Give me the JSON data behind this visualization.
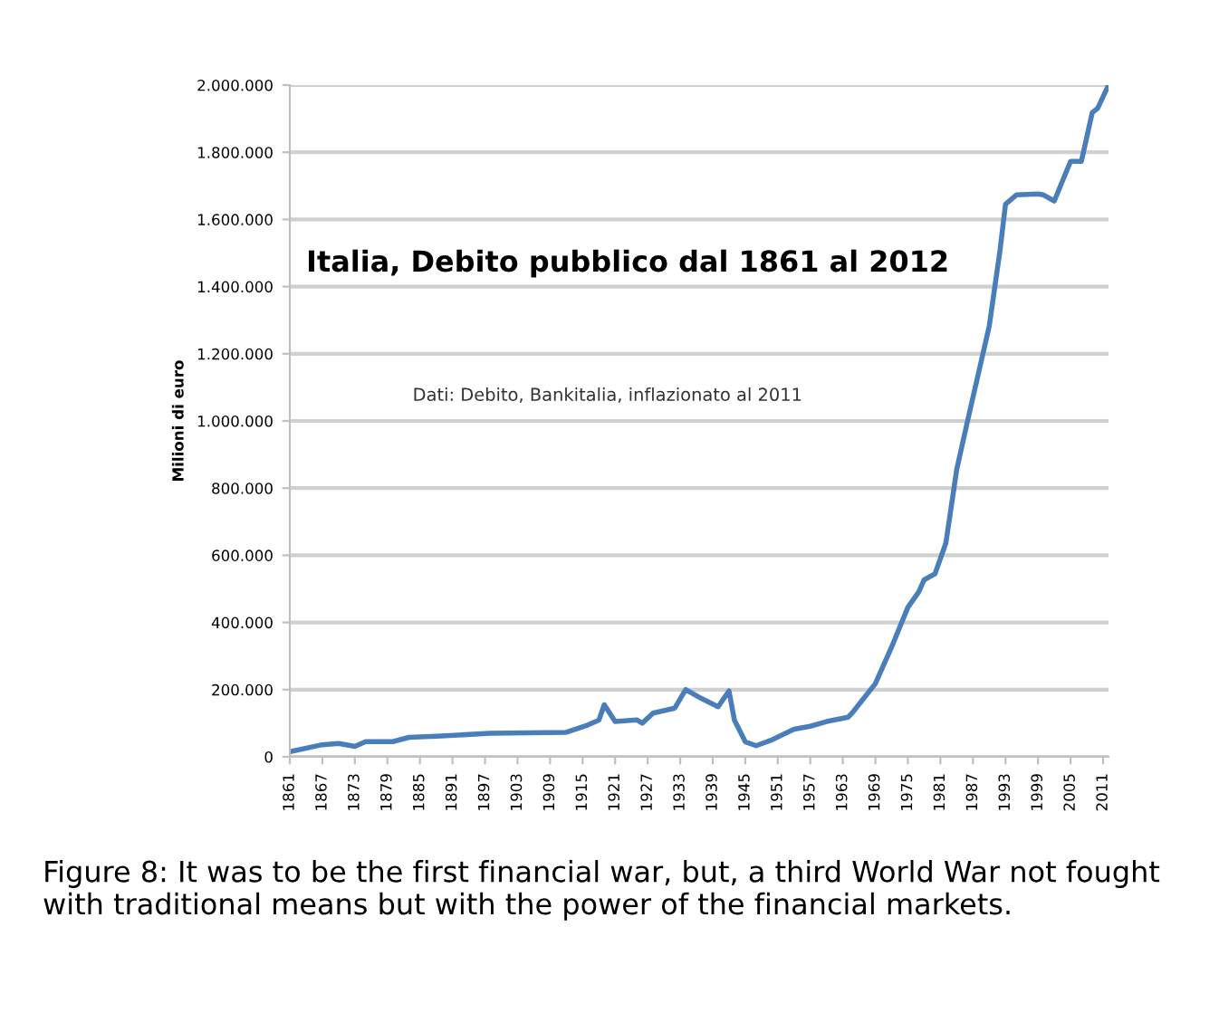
{
  "chart_data": {
    "type": "line",
    "title": "Italia, Debito pubblico dal 1861 al 2012",
    "ylabel": "Milioni di euro",
    "annotations": [
      "Dati: Debito, Bankitalia, inflazionato al 2011",
      "Figure 8: It was to be the first financial war, but, a third World War not fought with traditional means but with the power of the financial markets."
    ],
    "x": [
      1861,
      1867,
      1870,
      1873,
      1875,
      1880,
      1883,
      1889,
      1898,
      1912,
      1916,
      1918,
      1919,
      1921,
      1925,
      1926,
      1928,
      1932,
      1934,
      1937,
      1940,
      1942,
      1943,
      1945,
      1947,
      1950,
      1954,
      1957,
      1960,
      1964,
      1965,
      1969,
      1972,
      1975,
      1977,
      1978,
      1980,
      1982,
      1984,
      1986,
      1990,
      1992,
      1993,
      1995,
      1999,
      2000,
      2002,
      2005,
      2007,
      2009,
      2010,
      2012
    ],
    "series": [
      {
        "color": "#4a7ebb",
        "values": [
          15000,
          36000,
          40000,
          31000,
          45000,
          45000,
          58000,
          62000,
          70000,
          73000,
          95000,
          109000,
          155000,
          105000,
          110000,
          100000,
          130000,
          145000,
          200000,
          173000,
          149000,
          196000,
          109000,
          45000,
          33000,
          51000,
          82000,
          91000,
          105000,
          118000,
          136000,
          218000,
          327000,
          445000,
          491000,
          527000,
          545000,
          636000,
          855000,
          1000000,
          1282000,
          1509000,
          1645000,
          1673000,
          1676000,
          1673000,
          1655000,
          1773000,
          1773000,
          1918000,
          1931000,
          2000000
        ]
      }
    ],
    "xlim": [
      1861,
      2012
    ],
    "xticks": [
      1861,
      1867,
      1873,
      1879,
      1885,
      1891,
      1897,
      1903,
      1909,
      1915,
      1921,
      1927,
      1933,
      1939,
      1945,
      1951,
      1957,
      1963,
      1969,
      1975,
      1981,
      1987,
      1993,
      1999,
      2005,
      2011
    ],
    "ylim": [
      0,
      2000000
    ],
    "yticks": [
      {
        "value": 0,
        "label": "0"
      },
      {
        "value": 200000,
        "label": "200.000"
      },
      {
        "value": 400000,
        "label": "400.000"
      },
      {
        "value": 600000,
        "label": "600.000"
      },
      {
        "value": 800000,
        "label": "800.000"
      },
      {
        "value": 1000000,
        "label": "1.000.000"
      },
      {
        "value": 1200000,
        "label": "1.200.000"
      },
      {
        "value": 1400000,
        "label": "1.400.000"
      },
      {
        "value": 1600000,
        "label": "1.600.000"
      },
      {
        "value": 1800000,
        "label": "1.800.000"
      },
      {
        "value": 2000000,
        "label": "2.000.000"
      }
    ],
    "grid": "y",
    "legend": false,
    "marker": "none",
    "line_style": "solid"
  }
}
